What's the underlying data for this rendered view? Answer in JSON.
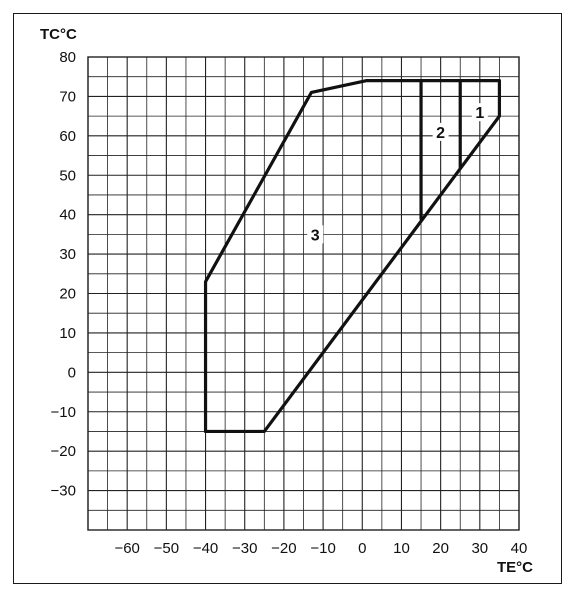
{
  "chart_data": {
    "type": "line",
    "title": "",
    "ylabel": "TC°C",
    "xlabel": "TE°C",
    "xlim": [
      -70,
      40
    ],
    "ylim": [
      -40,
      80
    ],
    "x_ticks": [
      -60,
      -50,
      -40,
      -30,
      -20,
      -10,
      0,
      10,
      20,
      30,
      40
    ],
    "y_ticks": [
      80,
      70,
      60,
      50,
      40,
      30,
      20,
      10,
      0,
      -10,
      -20,
      -30
    ],
    "grid": true,
    "series": [
      {
        "values": [
          [
            -40,
            -15
          ],
          [
            -40,
            23
          ],
          [
            -13,
            71
          ],
          [
            1,
            74
          ],
          [
            35,
            74
          ],
          [
            35,
            65
          ],
          [
            -25,
            -15
          ],
          [
            -40,
            -15
          ]
        ]
      },
      {
        "values": [
          [
            15,
            74
          ],
          [
            15,
            39
          ]
        ]
      },
      {
        "values": [
          [
            25,
            74
          ],
          [
            25,
            52
          ]
        ]
      }
    ],
    "annotations": [
      {
        "text": "1",
        "x": 30,
        "y": 66
      },
      {
        "text": "2",
        "x": 20,
        "y": 61
      },
      {
        "text": "3",
        "x": -12,
        "y": 35
      }
    ]
  },
  "colors": {
    "line": "#111111",
    "grid": "#222222",
    "background": "#ffffff"
  }
}
